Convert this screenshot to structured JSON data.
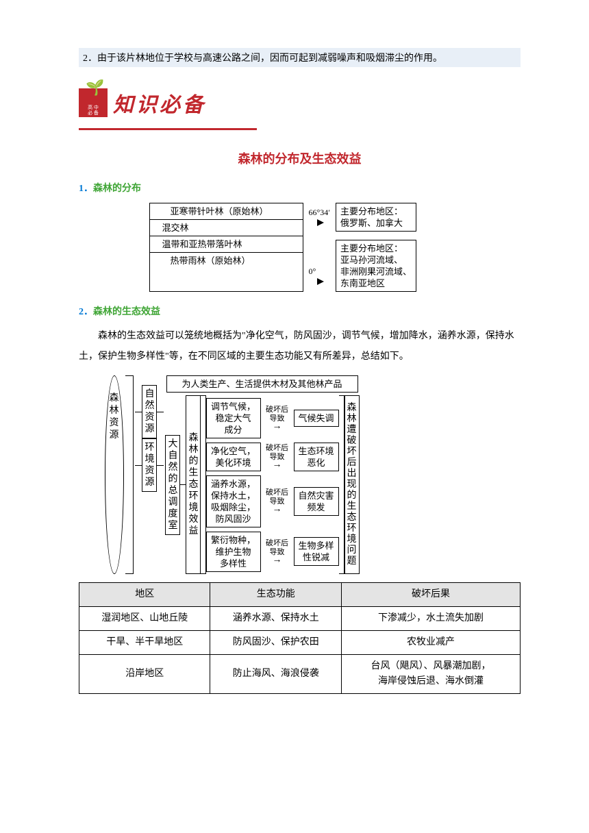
{
  "answer": "2．由于该片林地位于学校与高速公路之间，因而可起到减弱噪声和吸烟滞尘的作用。",
  "header": {
    "logo_small": "高 中\n必 备",
    "title": "知识必备"
  },
  "topic": "森林的分布及生态效益",
  "section1": {
    "num": "1．",
    "title": "森林的分布"
  },
  "diag1": {
    "rows": [
      "亚寒带针叶林（原始林）",
      "混交林",
      "温带和亚热带落叶林",
      "热带雨林（原始林）"
    ],
    "lat_top": "66°34′",
    "lat_bot": "0°",
    "boxA": "主要分布地区：\n俄罗斯、加拿大",
    "boxB": "主要分布地区：\n亚马孙河流域、\n非洲刚果河流域、\n东南亚地区"
  },
  "section2": {
    "num": "2．",
    "title": "森林的生态效益"
  },
  "body": "森林的生态效益可以笼统地概括为\"净化空气，防风固沙，调节气候，增加降水，涵养水源，保持水土，保护生物多样性\"等，在不同区域的主要生态功能又有所差异，总结如下。",
  "diag2": {
    "root": "森林资源",
    "branchA": {
      "name": "自然资源",
      "target": "为人类生产、生活提供木材及其他林产品"
    },
    "branchB": {
      "name": "环境资源",
      "sub": "大自然的总调度室",
      "sub2": "森林的生态环境效益",
      "result_title": "森林遭破坏后出现的生态环境问题",
      "items": [
        {
          "l": "调节气候，\n稳定大气\n成分",
          "m": "破坏后\n导致",
          "r": "气候失调"
        },
        {
          "l": "净化空气，\n美化环境",
          "m": "破坏后\n导致",
          "r": "生态环境\n恶化"
        },
        {
          "l": "涵养水源，\n保持水土，\n吸烟除尘，\n防风固沙",
          "m": "破坏后\n导致",
          "r": "自然灾害\n频发"
        },
        {
          "l": "繁衍物种，\n维护生物\n多样性",
          "m": "破坏后\n导致",
          "r": "生物多样\n性锐减"
        }
      ]
    }
  },
  "table": {
    "headers": [
      "地区",
      "生态功能",
      "破坏后果"
    ],
    "rows": [
      [
        "湿润地区、山地丘陵",
        "涵养水源、保持水土",
        "下渗减少，水土流失加剧"
      ],
      [
        "干旱、半干旱地区",
        "防风固沙、保护农田",
        "农牧业减产"
      ],
      [
        "沿岸地区",
        "防止海风、海浪侵袭",
        "台风（飓风）、风暴潮加剧，\n海岸侵蚀后退、海水倒灌"
      ]
    ]
  }
}
